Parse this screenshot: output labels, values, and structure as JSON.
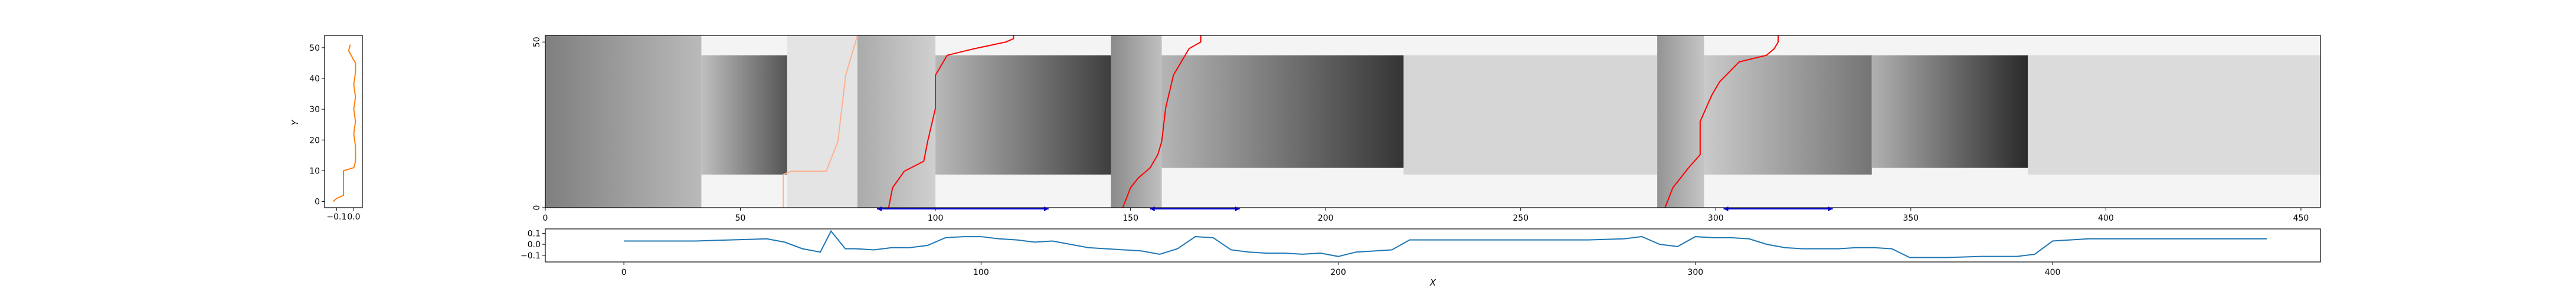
{
  "colors": {
    "query_series": "#ff7f0e",
    "warp_path": "#ff0000",
    "warp_path_faint": "#ffb090",
    "window_marker": "#0000cc",
    "bottom_series": "#1f77b4",
    "axes": "#000000"
  },
  "chart_data": [
    {
      "type": "line",
      "name_hint": "left-vertical-series",
      "orientation": "vertical",
      "xlabel": "",
      "ylabel": "Y",
      "xlim": [
        -0.17,
        0.05
      ],
      "ylim": [
        -2,
        54
      ],
      "xticks": [
        -0.1,
        0.0
      ],
      "xtick_labels": [
        "−0.1",
        "0.0"
      ],
      "yticks": [
        0,
        10,
        20,
        30,
        40,
        50
      ],
      "ytick_labels": [
        "0",
        "10",
        "20",
        "30",
        "40",
        "50"
      ],
      "series": [
        {
          "x": [
            -0.12,
            -0.1,
            -0.06,
            -0.06,
            0.0,
            0.01,
            0.01,
            0.0,
            0.01,
            0.0,
            0.01,
            0.0,
            0.01,
            0.01,
            0.0,
            -0.01,
            -0.02,
            -0.03,
            -0.02
          ],
          "y": [
            0,
            1,
            2,
            10,
            11,
            13,
            18,
            22,
            26,
            30,
            34,
            38,
            42,
            45,
            46,
            47,
            48,
            49,
            51
          ]
        }
      ]
    },
    {
      "type": "heatmap",
      "name_hint": "cost-matrix",
      "xlabel": "",
      "ylabel": "",
      "xlim": [
        0,
        455
      ],
      "ylim": [
        0,
        52
      ],
      "xticks": [
        0,
        50,
        100,
        150,
        200,
        250,
        300,
        350,
        400,
        450
      ],
      "xtick_labels": [
        "0",
        "50",
        "100",
        "150",
        "200",
        "250",
        "300",
        "350",
        "400",
        "450"
      ],
      "yticks": [
        0,
        50
      ],
      "ytick_labels": [
        "0",
        "50"
      ],
      "cells": [
        {
          "x0": 0,
          "x1": 40,
          "y0": 0,
          "y1": 52,
          "intensity": 0.55,
          "gradient": "left"
        },
        {
          "x0": 40,
          "x1": 62,
          "y0": 10,
          "y1": 46,
          "intensity": 0.75,
          "gradient": "right"
        },
        {
          "x0": 62,
          "x1": 80,
          "y0": 0,
          "y1": 52,
          "intensity": 0.08,
          "gradient": "none"
        },
        {
          "x0": 80,
          "x1": 100,
          "y0": 0,
          "y1": 52,
          "intensity": 0.35,
          "gradient": "left"
        },
        {
          "x0": 100,
          "x1": 145,
          "y0": 10,
          "y1": 46,
          "intensity": 0.85,
          "gradient": "right"
        },
        {
          "x0": 145,
          "x1": 158,
          "y0": 0,
          "y1": 52,
          "intensity": 0.5,
          "gradient": "left"
        },
        {
          "x0": 158,
          "x1": 220,
          "y0": 12,
          "y1": 46,
          "intensity": 0.9,
          "gradient": "right"
        },
        {
          "x0": 220,
          "x1": 285,
          "y0": 10,
          "y1": 46,
          "intensity": 0.15,
          "gradient": "none"
        },
        {
          "x0": 285,
          "x1": 297,
          "y0": 0,
          "y1": 52,
          "intensity": 0.45,
          "gradient": "left"
        },
        {
          "x0": 297,
          "x1": 340,
          "y0": 10,
          "y1": 46,
          "intensity": 0.6,
          "gradient": "right"
        },
        {
          "x0": 340,
          "x1": 380,
          "y0": 12,
          "y1": 46,
          "intensity": 0.95,
          "gradient": "right"
        },
        {
          "x0": 380,
          "x1": 455,
          "y0": 10,
          "y1": 46,
          "intensity": 0.12,
          "gradient": "none"
        }
      ],
      "paths": [
        {
          "style": "faint",
          "x": [
            61,
            61,
            63,
            72,
            75,
            76,
            77,
            79,
            80
          ],
          "y": [
            0,
            10,
            11,
            11,
            20,
            30,
            40,
            48,
            52
          ]
        },
        {
          "style": "solid",
          "x": [
            88,
            89,
            92,
            97,
            98,
            100,
            100,
            103,
            110,
            118,
            120,
            120
          ],
          "y": [
            0,
            6,
            11,
            14,
            20,
            30,
            40,
            46,
            48,
            50,
            51,
            52
          ]
        },
        {
          "style": "solid",
          "x": [
            148,
            150,
            152,
            155,
            157,
            158,
            159,
            161,
            165,
            168,
            168
          ],
          "y": [
            0,
            6,
            9,
            12,
            16,
            20,
            30,
            40,
            48,
            50,
            52
          ]
        },
        {
          "style": "solid",
          "x": [
            287,
            289,
            293,
            296,
            296,
            299,
            301,
            306,
            313,
            315,
            316,
            316
          ],
          "y": [
            0,
            6,
            12,
            16,
            26,
            34,
            38,
            44,
            46,
            48,
            50,
            52
          ]
        }
      ],
      "windows": [
        {
          "x0": 85,
          "x1": 129
        },
        {
          "x0": 155,
          "x1": 178
        },
        {
          "x0": 302,
          "x1": 330
        }
      ]
    },
    {
      "type": "line",
      "name_hint": "bottom-horizontal-series",
      "xlabel": "X",
      "ylabel": "",
      "xlim": [
        -22,
        475
      ],
      "ylim": [
        -0.16,
        0.14
      ],
      "xticks": [
        0,
        100,
        200,
        300,
        400
      ],
      "xtick_labels": [
        "0",
        "100",
        "200",
        "300",
        "400"
      ],
      "yticks": [
        0.1,
        0.0,
        -0.1
      ],
      "ytick_labels": [
        "0.1",
        "0.0",
        "−0.1"
      ],
      "series": [
        {
          "x": [
            0,
            20,
            40,
            45,
            50,
            55,
            58,
            62,
            65,
            70,
            75,
            80,
            85,
            90,
            95,
            100,
            105,
            110,
            115,
            120,
            125,
            130,
            135,
            140,
            145,
            150,
            155,
            160,
            165,
            170,
            175,
            180,
            185,
            190,
            195,
            200,
            205,
            210,
            215,
            220,
            230,
            240,
            250,
            260,
            270,
            280,
            285,
            290,
            295,
            300,
            305,
            310,
            315,
            320,
            325,
            330,
            335,
            340,
            345,
            350,
            355,
            360,
            370,
            380,
            385,
            390,
            395,
            400,
            410,
            420,
            430,
            440,
            450,
            460
          ],
          "y": [
            0.03,
            0.03,
            0.05,
            0.02,
            -0.04,
            -0.07,
            0.12,
            -0.04,
            -0.04,
            -0.05,
            -0.03,
            -0.03,
            -0.01,
            0.06,
            0.07,
            0.07,
            0.05,
            0.04,
            0.02,
            0.03,
            0.0,
            -0.03,
            -0.04,
            -0.05,
            -0.06,
            -0.09,
            -0.04,
            0.07,
            0.06,
            -0.05,
            -0.07,
            -0.08,
            -0.08,
            -0.09,
            -0.08,
            -0.11,
            -0.07,
            -0.06,
            -0.05,
            0.04,
            0.04,
            0.04,
            0.04,
            0.04,
            0.04,
            0.05,
            0.07,
            0.0,
            -0.02,
            0.07,
            0.06,
            0.06,
            0.05,
            0.0,
            -0.03,
            -0.04,
            -0.04,
            -0.04,
            -0.03,
            -0.03,
            -0.04,
            -0.12,
            -0.12,
            -0.11,
            -0.11,
            -0.11,
            -0.09,
            0.03,
            0.05,
            0.05,
            0.05,
            0.05,
            0.05,
            0.05
          ]
        }
      ]
    }
  ]
}
